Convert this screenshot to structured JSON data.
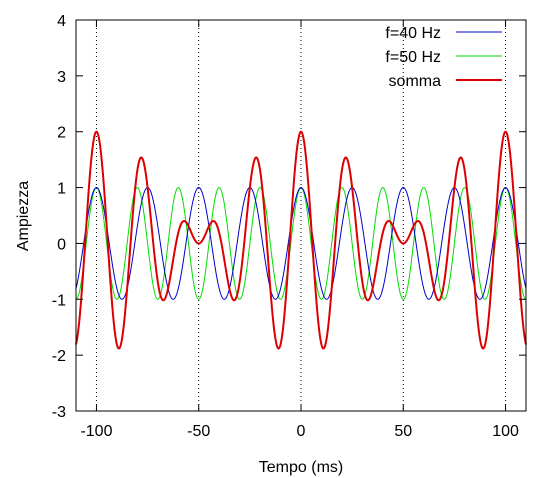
{
  "chart_data": {
    "type": "line",
    "xlabel": "Tempo (ms)",
    "ylabel": "Ampiezza",
    "xlim": [
      -110,
      110
    ],
    "ylim": [
      -3,
      4
    ],
    "x_ticks": [
      -100,
      -50,
      0,
      50,
      100
    ],
    "x_tick_labels": [
      "-100",
      "-50",
      "0",
      "50",
      "100"
    ],
    "y_ticks": [
      -3,
      -2,
      -1,
      0,
      1,
      2,
      3,
      4
    ],
    "y_tick_labels": [
      "-3",
      "-2",
      "-1",
      "0",
      "1",
      "2",
      "3",
      "4"
    ],
    "vertical_gridlines_at": [
      -100,
      -50,
      0,
      50,
      100
    ],
    "grid": "vertical dotted",
    "legend_placement": "top-right",
    "series": [
      {
        "name": "f=40 Hz",
        "function": "cos(2*pi*40*t)",
        "frequency_hz": 40,
        "amplitude": 1,
        "color": "#0000cc"
      },
      {
        "name": "f=50 Hz",
        "function": "cos(2*pi*50*t)",
        "frequency_hz": 50,
        "amplitude": 1,
        "color": "#00dd00"
      },
      {
        "name": "somma",
        "function": "cos(2*pi*40*t)+cos(2*pi*50*t)",
        "amplitude": 2,
        "color": "#dd0000"
      }
    ]
  }
}
